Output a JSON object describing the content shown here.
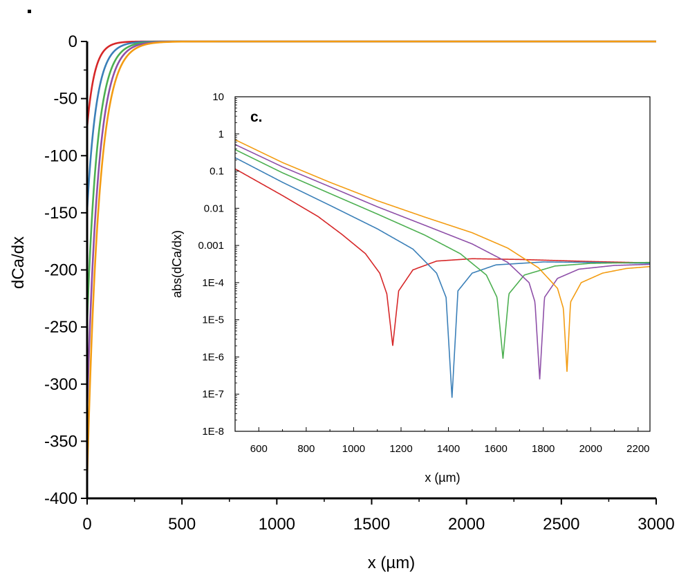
{
  "chart_data": [
    {
      "id": "main",
      "type": "line",
      "xlabel": "x (µm)",
      "ylabel": "dCa/dx",
      "xlim": [
        0,
        3000
      ],
      "ylim": [
        -400,
        0
      ],
      "x_ticks": [
        {
          "value": 0,
          "label": "0"
        },
        {
          "value": 500,
          "label": "500"
        },
        {
          "value": 1000,
          "label": "1000"
        },
        {
          "value": 1500,
          "label": "1500"
        },
        {
          "value": 2000,
          "label": "2000"
        },
        {
          "value": 2500,
          "label": "2500"
        },
        {
          "value": 3000,
          "label": "3000"
        }
      ],
      "y_ticks": [
        {
          "value": 0,
          "label": "0"
        },
        {
          "value": -50,
          "label": "-50"
        },
        {
          "value": -100,
          "label": "-100"
        },
        {
          "value": -150,
          "label": "-150"
        },
        {
          "value": -200,
          "label": "-200"
        },
        {
          "value": -250,
          "label": "-250"
        },
        {
          "value": -300,
          "label": "-300"
        },
        {
          "value": -350,
          "label": "-350"
        },
        {
          "value": -400,
          "label": "-400"
        }
      ],
      "series": [
        {
          "name": "red",
          "color": "#d62728",
          "y0": -75,
          "decay_um": 40
        },
        {
          "name": "blue",
          "color": "#3a7fb8",
          "y0": -148,
          "decay_um": 50
        },
        {
          "name": "green",
          "color": "#4caf50",
          "y0": -245,
          "decay_um": 55
        },
        {
          "name": "purple",
          "color": "#8e4fa8",
          "y0": -322,
          "decay_um": 58
        },
        {
          "name": "orange",
          "color": "#f39c12",
          "y0": -383,
          "decay_um": 62
        }
      ]
    },
    {
      "id": "inset",
      "type": "line",
      "panel_label": "c.",
      "xlabel": "x (µm)",
      "ylabel": "abs(dCa/dx)",
      "yscale": "log",
      "xlim": [
        500,
        2250
      ],
      "ylim": [
        1e-08,
        10
      ],
      "x_ticks": [
        {
          "value": 600,
          "label": "600"
        },
        {
          "value": 800,
          "label": "800"
        },
        {
          "value": 1000,
          "label": "1000"
        },
        {
          "value": 1200,
          "label": "1200"
        },
        {
          "value": 1400,
          "label": "1400"
        },
        {
          "value": 1600,
          "label": "1600"
        },
        {
          "value": 1800,
          "label": "1800"
        },
        {
          "value": 2000,
          "label": "2000"
        },
        {
          "value": 2200,
          "label": "2200"
        }
      ],
      "y_ticks": [
        {
          "value": 10,
          "label": "10"
        },
        {
          "value": 1,
          "label": "1"
        },
        {
          "value": 0.1,
          "label": "0.1"
        },
        {
          "value": 0.01,
          "label": "0.01"
        },
        {
          "value": 0.001,
          "label": "0.001"
        },
        {
          "value": 0.0001,
          "label": "1E-4"
        },
        {
          "value": 1e-05,
          "label": "1E-5"
        },
        {
          "value": 1e-06,
          "label": "1E-6"
        },
        {
          "value": 1e-07,
          "label": "1E-7"
        },
        {
          "value": 1e-08,
          "label": "1E-8"
        }
      ],
      "series": [
        {
          "name": "red",
          "color": "#d62728",
          "zero_x": 1165,
          "dip_min": 2e-06,
          "plateau": 0.00042,
          "points": [
            [
              500,
              0.115
            ],
            [
              700,
              0.022
            ],
            [
              850,
              0.006
            ],
            [
              950,
              0.002
            ],
            [
              1050,
              0.0006
            ],
            [
              1110,
              0.00018
            ],
            [
              1140,
              5e-05
            ]
          ],
          "recovery": [
            [
              1190,
              6e-05
            ],
            [
              1250,
              0.00022
            ],
            [
              1350,
              0.00038
            ],
            [
              1500,
              0.00044
            ],
            [
              1700,
              0.00042
            ],
            [
              2000,
              0.00037
            ],
            [
              2250,
              0.00034
            ]
          ]
        },
        {
          "name": "blue",
          "color": "#3a7fb8",
          "zero_x": 1415,
          "dip_min": 8e-08,
          "plateau": 0.00035,
          "points": [
            [
              500,
              0.23
            ],
            [
              700,
              0.05
            ],
            [
              900,
              0.012
            ],
            [
              1100,
              0.0028
            ],
            [
              1250,
              0.0008
            ],
            [
              1350,
              0.00018
            ],
            [
              1390,
              4e-05
            ]
          ],
          "recovery": [
            [
              1440,
              6e-05
            ],
            [
              1500,
              0.00018
            ],
            [
              1600,
              0.0003
            ],
            [
              1800,
              0.00036
            ],
            [
              2000,
              0.00035
            ],
            [
              2250,
              0.00033
            ]
          ]
        },
        {
          "name": "green",
          "color": "#4caf50",
          "zero_x": 1630,
          "dip_min": 9e-07,
          "plateau": 0.00035,
          "points": [
            [
              500,
              0.38
            ],
            [
              700,
              0.09
            ],
            [
              900,
              0.025
            ],
            [
              1100,
              0.007
            ],
            [
              1300,
              0.0019
            ],
            [
              1450,
              0.0006
            ],
            [
              1560,
              0.00016
            ],
            [
              1605,
              4e-05
            ]
          ],
          "recovery": [
            [
              1655,
              5e-05
            ],
            [
              1720,
              0.00016
            ],
            [
              1850,
              0.00028
            ],
            [
              2000,
              0.00033
            ],
            [
              2250,
              0.00035
            ]
          ]
        },
        {
          "name": "purple",
          "color": "#8e4fa8",
          "zero_x": 1785,
          "dip_min": 2.5e-07,
          "plateau": 0.00032,
          "points": [
            [
              500,
              0.52
            ],
            [
              700,
              0.13
            ],
            [
              900,
              0.038
            ],
            [
              1100,
              0.011
            ],
            [
              1300,
              0.0035
            ],
            [
              1500,
              0.0011
            ],
            [
              1650,
              0.00035
            ],
            [
              1740,
              0.0001
            ],
            [
              1765,
              3e-05
            ]
          ],
          "recovery": [
            [
              1805,
              4e-05
            ],
            [
              1860,
              0.00013
            ],
            [
              1950,
              0.00023
            ],
            [
              2100,
              0.00029
            ],
            [
              2250,
              0.00031
            ]
          ]
        },
        {
          "name": "orange",
          "color": "#f39c12",
          "zero_x": 1900,
          "dip_min": 4e-07,
          "plateau": 0.00028,
          "points": [
            [
              500,
              0.7
            ],
            [
              700,
              0.17
            ],
            [
              900,
              0.05
            ],
            [
              1100,
              0.016
            ],
            [
              1300,
              0.0058
            ],
            [
              1500,
              0.0022
            ],
            [
              1650,
              0.00085
            ],
            [
              1780,
              0.00025
            ],
            [
              1860,
              7e-05
            ],
            [
              1885,
              2e-05
            ]
          ],
          "recovery": [
            [
              1915,
              3e-05
            ],
            [
              1960,
              0.0001
            ],
            [
              2050,
              0.00018
            ],
            [
              2150,
              0.00024
            ],
            [
              2250,
              0.00027
            ]
          ]
        }
      ]
    }
  ]
}
